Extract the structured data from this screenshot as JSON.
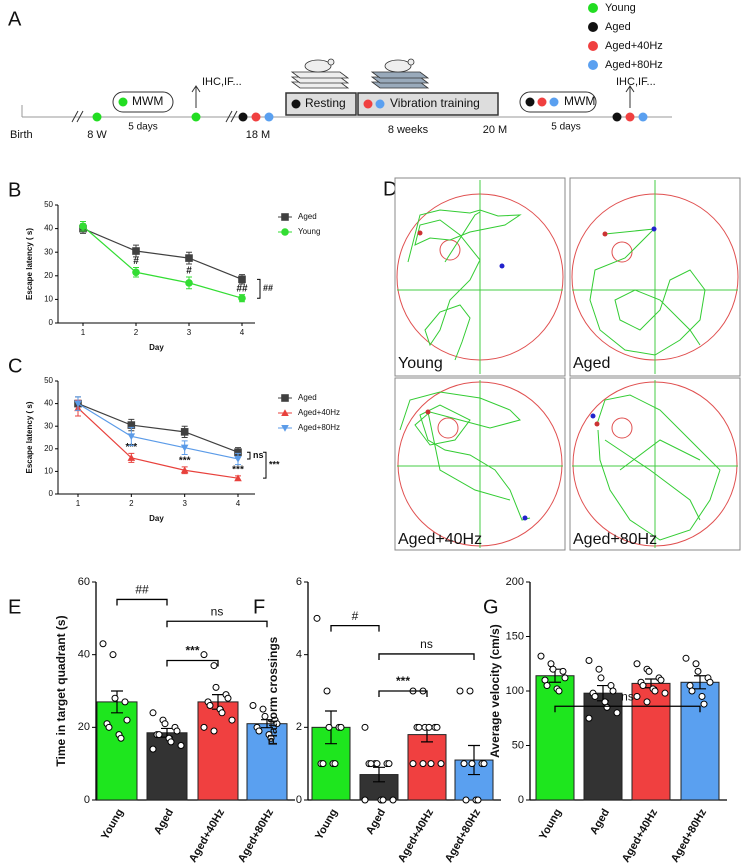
{
  "timeline": {
    "panel": "A",
    "legend": [
      {
        "label": "Young",
        "color": "#22dd22"
      },
      {
        "label": "Aged",
        "color": "#111111"
      },
      {
        "label": "Aged+40Hz",
        "color": "#f04040"
      },
      {
        "label": "Aged+80Hz",
        "color": "#5aa0f0"
      }
    ],
    "birth": "Birth",
    "t1": "8 W",
    "mwm1": "MWM",
    "days1": "5 days",
    "ihc1": "IHC,IF...",
    "t2": "18 M",
    "resting": "Resting",
    "vibration": "Vibration training",
    "weeks": "8 weeks",
    "t3": "20 M",
    "mwm2": "MWM",
    "days2": "5 days",
    "ihc2": "IHC,IF..."
  },
  "swim_paths": {
    "panel": "D",
    "labels": [
      "Young",
      "Aged",
      "Aged+40Hz",
      "Aged+80Hz"
    ]
  },
  "chart_data": [
    {
      "type": "line",
      "panel": "B",
      "y_label": "Escape latency ( s)",
      "x_label": "Day",
      "categories": [
        "1",
        "2",
        "3",
        "4"
      ],
      "ylim": [
        0,
        50
      ],
      "yticks": [
        0,
        10,
        20,
        30,
        40,
        50
      ],
      "series": [
        {
          "name": "Aged",
          "color": "#404040",
          "marker": "square",
          "values": [
            40,
            30.5,
            27.5,
            18.5
          ],
          "errors": [
            2,
            2.5,
            2.5,
            2
          ]
        },
        {
          "name": "Young",
          "color": "#33dd33",
          "marker": "circle",
          "values": [
            41,
            21.5,
            17,
            10.5
          ],
          "errors": [
            2,
            2,
            2.5,
            1.5
          ],
          "annotations": [
            null,
            "#",
            "#",
            "##"
          ]
        }
      ],
      "brackets": [
        "##"
      ]
    },
    {
      "type": "line",
      "panel": "C",
      "y_label": "Escape latency ( s)",
      "x_label": "Day",
      "categories": [
        "1",
        "2",
        "3",
        "4"
      ],
      "ylim": [
        0,
        50
      ],
      "yticks": [
        0,
        10,
        20,
        30,
        40,
        50
      ],
      "series": [
        {
          "name": "Aged",
          "color": "#404040",
          "marker": "square",
          "values": [
            40,
            30.5,
            27.5,
            18.5
          ],
          "errors": [
            3,
            2.5,
            2.5,
            2
          ]
        },
        {
          "name": "Aged+40Hz",
          "color": "#e8413c",
          "marker": "triangle",
          "values": [
            38,
            16,
            10.5,
            7
          ],
          "errors": [
            3.5,
            2,
            1.5,
            1
          ],
          "annotations": [
            null,
            "***",
            "***",
            "***"
          ]
        },
        {
          "name": "Aged+80Hz",
          "color": "#5b9be8",
          "marker": "triangle-down",
          "values": [
            40,
            25.5,
            20.5,
            15.5
          ],
          "errors": [
            3,
            4,
            3,
            2.5
          ]
        }
      ],
      "brackets": [
        "ns",
        "***"
      ]
    },
    {
      "type": "bar",
      "panel": "E",
      "y_label": "Time in target quadrant (s)",
      "categories": [
        "Young",
        "Aged",
        "Aged+40Hz",
        "Aged+80Hz"
      ],
      "colors": [
        "#1ee61e",
        "#333333",
        "#f04040",
        "#5aa0f0"
      ],
      "values": [
        27,
        18.5,
        27,
        21
      ],
      "errors": [
        3,
        1.2,
        2,
        1.1
      ],
      "ylim": [
        0,
        60
      ],
      "yticks": [
        0,
        20,
        40,
        60
      ],
      "points": [
        [
          43,
          40,
          28,
          27,
          22,
          21,
          20,
          18,
          17
        ],
        [
          24,
          22,
          21,
          20,
          19,
          18,
          18,
          17,
          16,
          15,
          14
        ],
        [
          40,
          37,
          31,
          29,
          28,
          27,
          26,
          25,
          24,
          22,
          20,
          19
        ],
        [
          26,
          25,
          23,
          22,
          21,
          20,
          19,
          18,
          17
        ]
      ],
      "comparisons": [
        "##",
        "ns",
        "***"
      ]
    },
    {
      "type": "bar",
      "panel": "F",
      "y_label": "Platform crossings",
      "categories": [
        "Young",
        "Aged",
        "Aged+40Hz",
        "Aged+80Hz"
      ],
      "colors": [
        "#1ee61e",
        "#333333",
        "#f04040",
        "#5aa0f0"
      ],
      "values": [
        2,
        0.7,
        1.8,
        1.1
      ],
      "errors": [
        0.45,
        0.2,
        0.2,
        0.4
      ],
      "ylim": [
        0,
        6
      ],
      "yticks": [
        0,
        2,
        4,
        6
      ],
      "points": [
        [
          5,
          3,
          2,
          2,
          2,
          1,
          1,
          1,
          1
        ],
        [
          2,
          1,
          1,
          1,
          1,
          1,
          1,
          0,
          0,
          0,
          0
        ],
        [
          3,
          3,
          2,
          2,
          2,
          2,
          2,
          2,
          1,
          1,
          1,
          1
        ],
        [
          3,
          3,
          1,
          1,
          1,
          1,
          0,
          0,
          0
        ]
      ],
      "comparisons": [
        "#",
        "ns",
        "***"
      ]
    },
    {
      "type": "bar",
      "panel": "G",
      "y_label": "Average velocity (cm/s)",
      "categories": [
        "Young",
        "Aged",
        "Aged+40Hz",
        "Aged+80Hz"
      ],
      "colors": [
        "#1ee61e",
        "#333333",
        "#f04040",
        "#5aa0f0"
      ],
      "values": [
        114,
        98,
        107,
        108
      ],
      "errors": [
        6,
        7,
        4,
        6
      ],
      "ylim": [
        0,
        200
      ],
      "yticks": [
        0,
        50,
        100,
        150,
        200
      ],
      "points": [
        [
          132,
          125,
          120,
          118,
          112,
          110,
          105,
          102,
          100
        ],
        [
          128,
          120,
          112,
          105,
          100,
          98,
          95,
          90,
          85,
          80,
          75
        ],
        [
          125,
          120,
          118,
          112,
          110,
          108,
          105,
          102,
          100,
          98,
          95,
          90
        ],
        [
          130,
          125,
          118,
          112,
          108,
          105,
          100,
          95,
          88
        ]
      ],
      "comparisons": [
        "ns"
      ]
    }
  ]
}
